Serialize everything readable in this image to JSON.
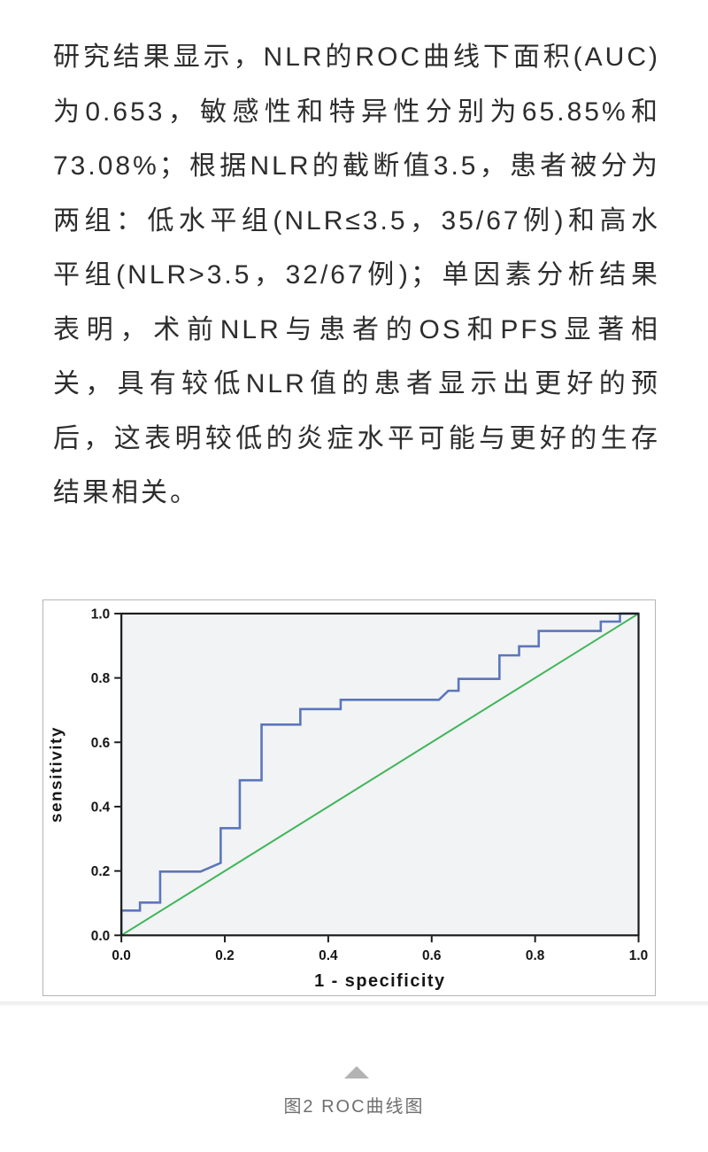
{
  "paragraph": {
    "lines": [
      "研究结果显示，NLR的ROC曲线下面积(AUC)",
      "为0.653，敏感性和特异性分别为65.85%和",
      "73.08%；根据NLR的截断值3.5，患者被分为",
      "两组：低水平组(NLR≤3.5，35/67例)和高水",
      "平组(NLR>3.5，32/67例)；单因素分析结果",
      "表明，术前NLR与患者的OS和PFS显著相",
      "关，具有较低NLR值的患者显示出更好的预",
      "后，这表明较低的炎症水平可能与更好的生存",
      "结果相关。"
    ]
  },
  "figure": {
    "caption": "图2  ROC曲线图",
    "collapse_icon": "triangle-up-icon",
    "triangle_color": "#b3b3b3",
    "caption_color": "#6f6f6f"
  },
  "chart_data": {
    "type": "line",
    "subtype": "roc-step-curve",
    "title": "",
    "xlabel": "1 - specificity",
    "ylabel": "sensitivity",
    "xlim": [
      0,
      1
    ],
    "ylim": [
      0,
      1
    ],
    "xticks": [
      0,
      0.2,
      0.4,
      0.6,
      0.8,
      1
    ],
    "xtick_labels": [
      "0.0",
      "0.2",
      "0.4",
      "0.6",
      "0.8",
      "1.0"
    ],
    "yticks": [
      0,
      0.2,
      0.4,
      0.6,
      0.8,
      1
    ],
    "ytick_labels": [
      "0.0",
      "0.2",
      "0.4",
      "0.6",
      "0.8",
      "1.0"
    ],
    "grid": false,
    "legend": "none",
    "plot_bg": "#f2f3f4",
    "axis_color": "#1c1c1c",
    "series": [
      {
        "id": "reference-diagonal",
        "color": "#3eb659",
        "width": 2,
        "points": [
          [
            0,
            0
          ],
          [
            1,
            1
          ]
        ]
      },
      {
        "id": "roc-curve",
        "color": "#5b76bb",
        "width": 2.6,
        "points": [
          [
            0,
            0
          ],
          [
            0,
            0.077
          ],
          [
            0.036,
            0.077
          ],
          [
            0.036,
            0.102
          ],
          [
            0.075,
            0.102
          ],
          [
            0.075,
            0.198
          ],
          [
            0.153,
            0.198
          ],
          [
            0.192,
            0.225
          ],
          [
            0.192,
            0.333
          ],
          [
            0.229,
            0.333
          ],
          [
            0.229,
            0.482
          ],
          [
            0.271,
            0.482
          ],
          [
            0.271,
            0.655
          ],
          [
            0.346,
            0.655
          ],
          [
            0.346,
            0.703
          ],
          [
            0.424,
            0.703
          ],
          [
            0.424,
            0.732
          ],
          [
            0.614,
            0.732
          ],
          [
            0.632,
            0.76
          ],
          [
            0.652,
            0.76
          ],
          [
            0.652,
            0.797
          ],
          [
            0.731,
            0.797
          ],
          [
            0.731,
            0.87
          ],
          [
            0.769,
            0.87
          ],
          [
            0.769,
            0.898
          ],
          [
            0.807,
            0.898
          ],
          [
            0.807,
            0.946
          ],
          [
            0.927,
            0.946
          ],
          [
            0.927,
            0.975
          ],
          [
            0.964,
            0.975
          ],
          [
            0.964,
            1
          ],
          [
            1,
            1
          ]
        ]
      }
    ]
  }
}
